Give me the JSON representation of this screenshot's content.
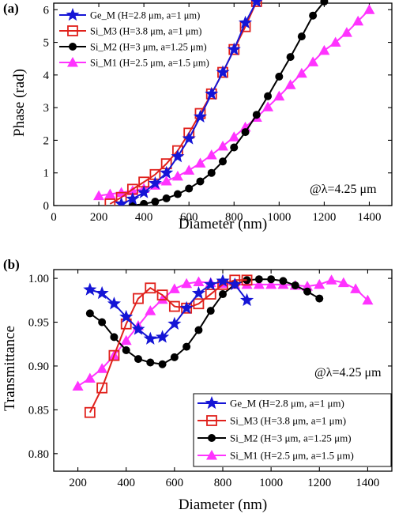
{
  "panel_a": {
    "label": "(a)",
    "ylabel": "Phase (rad)",
    "xlabel": "Diameter (nm)",
    "annotation": "@λ=4.25 μm"
  },
  "panel_b": {
    "label": "(b)",
    "ylabel": "Transmittance",
    "xlabel": "Diameter (nm)",
    "annotation": "@λ=4.25 μm"
  },
  "colors": {
    "ge_m": "#1515d6",
    "si_m3": "#e0201b",
    "si_m2": "#000000",
    "si_m1": "#ff33ff"
  },
  "chart_data": [
    {
      "type": "line",
      "ylabel": "Phase (rad)",
      "xlabel": "Diameter (nm)",
      "xlim": [
        0,
        1500
      ],
      "ylim": [
        0,
        6.2
      ],
      "xticks": [
        0,
        200,
        400,
        600,
        800,
        1000,
        1200,
        1400
      ],
      "yticks": [
        0,
        1,
        2,
        3,
        4,
        5,
        6
      ],
      "legend": "top-left",
      "grid": false,
      "series": [
        {
          "name": "Ge_M  (H=2.8 μm, a=1 μm)",
          "marker": "star",
          "x": [
            300,
            350,
            400,
            450,
            500,
            550,
            600,
            650,
            700,
            750,
            800,
            850,
            900
          ],
          "y": [
            0.05,
            0.2,
            0.4,
            0.68,
            1.0,
            1.5,
            2.05,
            2.72,
            3.42,
            4.08,
            4.78,
            5.6,
            6.25
          ]
        },
        {
          "name": "Si_M3 (H=3.8 μm, a=1 μm)",
          "marker": "square",
          "x": [
            250,
            300,
            350,
            400,
            450,
            500,
            550,
            600,
            650,
            700,
            750,
            800,
            850,
            900
          ],
          "y": [
            0.05,
            0.25,
            0.5,
            0.72,
            0.95,
            1.28,
            1.68,
            2.22,
            2.82,
            3.42,
            4.08,
            4.78,
            5.48,
            6.25
          ]
        },
        {
          "name": "Si_M2 (H=3 μm, a=1.25 μm)",
          "marker": "circle",
          "x": [
            350,
            400,
            450,
            500,
            550,
            600,
            650,
            700,
            750,
            800,
            850,
            900,
            950,
            1000,
            1050,
            1100,
            1150,
            1200
          ],
          "y": [
            0.0,
            0.05,
            0.12,
            0.22,
            0.35,
            0.52,
            0.74,
            1.0,
            1.35,
            1.78,
            2.25,
            2.78,
            3.35,
            3.95,
            4.55,
            5.18,
            5.82,
            6.25
          ]
        },
        {
          "name": "Si_M1 (H=2.5 μm, a=1.5 μm)",
          "marker": "triangle",
          "x": [
            200,
            250,
            300,
            350,
            400,
            450,
            500,
            550,
            600,
            650,
            700,
            750,
            800,
            850,
            900,
            950,
            1000,
            1050,
            1100,
            1150,
            1200,
            1250,
            1300,
            1350,
            1400
          ],
          "y": [
            0.3,
            0.35,
            0.4,
            0.45,
            0.52,
            0.62,
            0.75,
            0.9,
            1.08,
            1.3,
            1.55,
            1.82,
            2.1,
            2.4,
            2.7,
            3.02,
            3.35,
            3.7,
            4.05,
            4.4,
            4.75,
            5.0,
            5.3,
            5.65,
            6.0
          ]
        }
      ],
      "annotations": [
        "@λ=4.25 μm"
      ]
    },
    {
      "type": "line",
      "ylabel": "Transmittance",
      "xlabel": "Diameter (nm)",
      "xlim": [
        100,
        1500
      ],
      "ylim": [
        0.78,
        1.01
      ],
      "xticks": [
        200,
        400,
        600,
        800,
        1000,
        1200,
        1400
      ],
      "yticks": [
        0.8,
        0.85,
        0.9,
        0.95,
        1.0
      ],
      "ytick_labels": [
        "0.80",
        "0.85",
        "0.90",
        "0.95",
        "1.00"
      ],
      "legend": "bottom-right",
      "grid": false,
      "series": [
        {
          "name": "Ge_M  (H=2.8 μm, a=1 μm)",
          "marker": "star",
          "x": [
            250,
            300,
            350,
            400,
            450,
            500,
            550,
            600,
            650,
            700,
            750,
            800,
            850,
            900
          ],
          "y": [
            0.987,
            0.983,
            0.971,
            0.956,
            0.942,
            0.931,
            0.933,
            0.948,
            0.966,
            0.983,
            0.993,
            0.997,
            0.993,
            0.975
          ]
        },
        {
          "name": "Si_M3 (H=3.8 μm, a=1 μm)",
          "marker": "square",
          "x": [
            250,
            300,
            350,
            400,
            450,
            500,
            550,
            600,
            650,
            700,
            750,
            800,
            850,
            900
          ],
          "y": [
            0.847,
            0.875,
            0.912,
            0.948,
            0.977,
            0.989,
            0.981,
            0.968,
            0.966,
            0.971,
            0.982,
            0.993,
            0.998,
            0.998
          ]
        },
        {
          "name": "Si_M2 (H=3 μm, a=1.25 μm)",
          "marker": "circle",
          "x": [
            250,
            300,
            350,
            400,
            450,
            500,
            550,
            600,
            650,
            700,
            750,
            800,
            850,
            900,
            950,
            1000,
            1050,
            1100,
            1150,
            1200
          ],
          "y": [
            0.96,
            0.95,
            0.933,
            0.918,
            0.908,
            0.904,
            0.902,
            0.91,
            0.922,
            0.941,
            0.963,
            0.982,
            0.993,
            0.998,
            0.999,
            0.999,
            0.997,
            0.992,
            0.985,
            0.977
          ]
        },
        {
          "name": "Si_M1 (H=2.5 μm, a=1.5 μm)",
          "marker": "triangle",
          "x": [
            200,
            250,
            300,
            350,
            400,
            450,
            500,
            550,
            600,
            650,
            700,
            750,
            800,
            850,
            900,
            950,
            1000,
            1050,
            1100,
            1150,
            1200,
            1250,
            1300,
            1350,
            1400
          ],
          "y": [
            0.877,
            0.886,
            0.897,
            0.912,
            0.929,
            0.946,
            0.963,
            0.976,
            0.988,
            0.994,
            0.996,
            0.995,
            0.994,
            0.993,
            0.993,
            0.993,
            0.993,
            0.993,
            0.992,
            0.991,
            0.993,
            0.998,
            0.995,
            0.988,
            0.975
          ]
        }
      ],
      "annotations": [
        "@λ=4.25 μm"
      ]
    }
  ]
}
